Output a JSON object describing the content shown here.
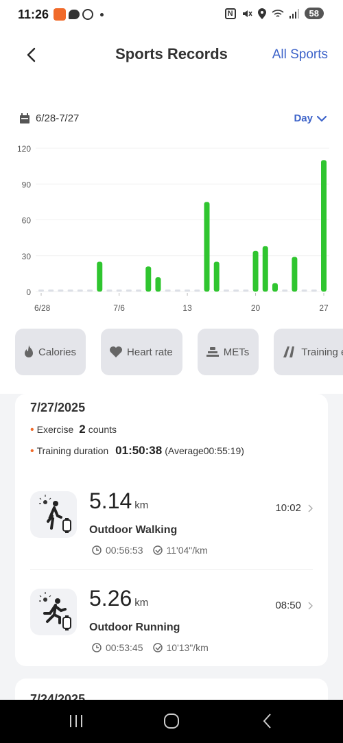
{
  "status_bar": {
    "time": "11:26",
    "battery": "58",
    "net_label": "N"
  },
  "header": {
    "title": "Sports Records",
    "all_sports": "All Sports"
  },
  "range": {
    "text": "6/28-7/27",
    "period": "Day"
  },
  "chart_data": {
    "type": "bar",
    "ylim": [
      0,
      120
    ],
    "yticks": [
      0,
      30,
      60,
      90,
      120
    ],
    "x_tick_labels": [
      {
        "label": "6/28",
        "index": 0
      },
      {
        "label": "7/6",
        "index": 8
      },
      {
        "label": "13",
        "index": 15
      },
      {
        "label": "20",
        "index": 22
      },
      {
        "label": "27",
        "index": 29
      }
    ],
    "categories": [
      "6/28",
      "6/29",
      "6/30",
      "7/1",
      "7/2",
      "7/3",
      "7/4",
      "7/5",
      "7/6",
      "7/7",
      "7/8",
      "7/9",
      "7/10",
      "7/11",
      "7/12",
      "7/13",
      "7/14",
      "7/15",
      "7/16",
      "7/17",
      "7/18",
      "7/19",
      "7/20",
      "7/21",
      "7/22",
      "7/23",
      "7/24",
      "7/25",
      "7/26",
      "7/27"
    ],
    "values": [
      0,
      0,
      0,
      0,
      0,
      0,
      25,
      0,
      0,
      0,
      0,
      21,
      12,
      0,
      0,
      0,
      0,
      75,
      25,
      0,
      0,
      0,
      34,
      38,
      7,
      0,
      29,
      0,
      0,
      110
    ],
    "bar_color": "#2fc52f",
    "empty_color": "#dcdfe6"
  },
  "metric_chips": [
    {
      "label": "Calories",
      "icon": "flame-icon"
    },
    {
      "label": "Heart rate",
      "icon": "heart-icon"
    },
    {
      "label": "METs",
      "icon": "mets-icon"
    },
    {
      "label": "Training e",
      "icon": "training-icon"
    }
  ],
  "day_card": {
    "date": "7/27/2025",
    "exercise_label": "Exercise",
    "exercise_count": "2",
    "exercise_unit": "counts",
    "duration_label": "Training duration",
    "duration_value": "01:50:38",
    "duration_avg": "(Average00:55:19)",
    "records": [
      {
        "distance": "5.14",
        "unit": "km",
        "time": "10:02",
        "name": "Outdoor Walking",
        "duration": "00:56:53",
        "pace": "11'04\"/km",
        "icon": "walking-icon"
      },
      {
        "distance": "5.26",
        "unit": "km",
        "time": "08:50",
        "name": "Outdoor Running",
        "duration": "00:53:45",
        "pace": "10'13\"/km",
        "icon": "running-icon"
      }
    ]
  },
  "next_card": {
    "date": "7/24/2025"
  },
  "colors": {
    "accent": "#3d63c9",
    "bar": "#2fc52f",
    "bullet": "#f06a2a"
  }
}
